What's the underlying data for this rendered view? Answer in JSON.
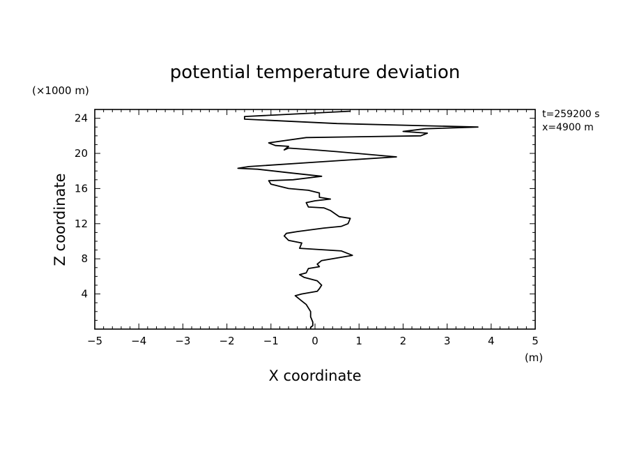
{
  "chart_data": {
    "type": "line",
    "title": "potential temperature deviation",
    "xlabel": "X coordinate",
    "ylabel": "Z coordinate",
    "x_unit": "(m)",
    "y_unit": "(×1000 m)",
    "xlim": [
      -5,
      5
    ],
    "ylim": [
      0,
      25
    ],
    "xticks": [
      -5,
      -4,
      -3,
      -2,
      -1,
      0,
      1,
      2,
      3,
      4,
      5
    ],
    "yticks": [
      4,
      8,
      12,
      16,
      20,
      24
    ],
    "annotations": [
      "t=259200 s",
      "x=4900 m"
    ],
    "grid": false,
    "series": [
      {
        "points": [
          [
            -0.1,
            0.0
          ],
          [
            -0.1,
            0.2
          ],
          [
            -0.05,
            0.4
          ],
          [
            -0.05,
            0.8
          ],
          [
            -0.1,
            1.4
          ],
          [
            -0.1,
            2.0
          ],
          [
            -0.2,
            2.8
          ],
          [
            -0.3,
            3.2
          ],
          [
            -0.45,
            3.8
          ],
          [
            -0.3,
            4.0
          ],
          [
            0.05,
            4.3
          ],
          [
            0.1,
            4.6
          ],
          [
            0.15,
            5.0
          ],
          [
            0.05,
            5.5
          ],
          [
            -0.25,
            5.9
          ],
          [
            -0.35,
            6.2
          ],
          [
            -0.2,
            6.4
          ],
          [
            -0.15,
            6.9
          ],
          [
            0.1,
            7.1
          ],
          [
            0.05,
            7.4
          ],
          [
            0.15,
            7.8
          ],
          [
            0.85,
            8.4
          ],
          [
            0.6,
            8.9
          ],
          [
            -0.35,
            9.2
          ],
          [
            -0.3,
            9.8
          ],
          [
            -0.6,
            10.1
          ],
          [
            -0.7,
            10.6
          ],
          [
            -0.65,
            10.9
          ],
          [
            -0.4,
            11.1
          ],
          [
            0.2,
            11.5
          ],
          [
            0.6,
            11.7
          ],
          [
            0.75,
            12.0
          ],
          [
            0.8,
            12.6
          ],
          [
            0.55,
            12.8
          ],
          [
            0.35,
            13.5
          ],
          [
            0.2,
            13.8
          ],
          [
            -0.15,
            13.9
          ],
          [
            -0.2,
            14.4
          ],
          [
            0.0,
            14.6
          ],
          [
            0.35,
            14.8
          ],
          [
            0.1,
            15.0
          ],
          [
            0.1,
            15.5
          ],
          [
            -0.15,
            15.8
          ],
          [
            -0.6,
            16.0
          ],
          [
            -1.0,
            16.5
          ],
          [
            -1.05,
            16.9
          ],
          [
            -0.5,
            17.0
          ],
          [
            0.15,
            17.4
          ],
          [
            -0.6,
            17.8
          ],
          [
            -1.3,
            18.2
          ],
          [
            -1.75,
            18.3
          ],
          [
            -1.5,
            18.5
          ],
          [
            0.0,
            19.0
          ],
          [
            1.85,
            19.6
          ],
          [
            0.5,
            20.2
          ],
          [
            0.0,
            20.4
          ],
          [
            -0.6,
            20.6
          ],
          [
            -0.7,
            20.4
          ],
          [
            -0.6,
            20.8
          ],
          [
            -0.9,
            20.9
          ],
          [
            -1.05,
            21.2
          ],
          [
            -0.2,
            21.8
          ],
          [
            2.4,
            22.0
          ],
          [
            2.55,
            22.3
          ],
          [
            2.0,
            22.5
          ],
          [
            2.5,
            22.8
          ],
          [
            3.7,
            23.0
          ],
          [
            0.5,
            23.4
          ],
          [
            -1.6,
            23.9
          ],
          [
            -1.6,
            24.2
          ],
          [
            0.8,
            24.8
          ]
        ]
      }
    ]
  }
}
